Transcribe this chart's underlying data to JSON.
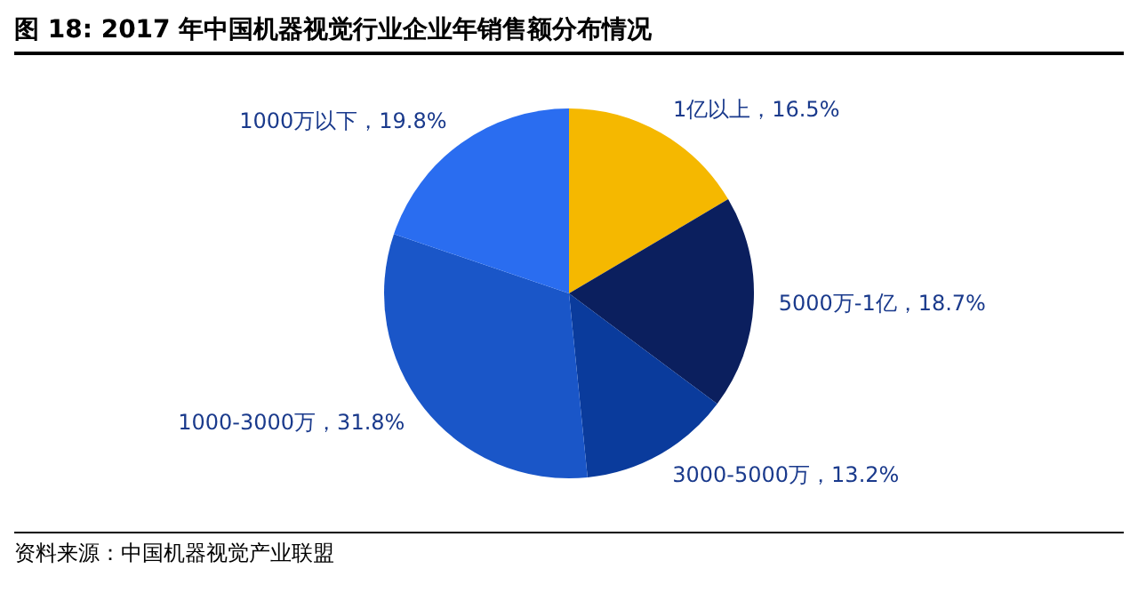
{
  "chart_data": {
    "type": "pie",
    "title": "图 18:  2017 年中国机器视觉行业企业年销售额分布情况",
    "categories": [
      "1亿以上",
      "5000万-1亿",
      "3000-5000万",
      "1000-3000万",
      "1000万以下"
    ],
    "values": [
      16.5,
      18.7,
      13.2,
      31.8,
      19.8
    ],
    "value_labels": [
      "16.5%",
      "18.7%",
      "13.2%",
      "31.8%",
      "19.8%"
    ],
    "colors": [
      "#f5b800",
      "#0b1f5e",
      "#0a3b9c",
      "#1a56c8",
      "#2a6df0"
    ],
    "legend": false,
    "annotations": [
      "资料来源：中国机器视觉产业联盟"
    ]
  }
}
